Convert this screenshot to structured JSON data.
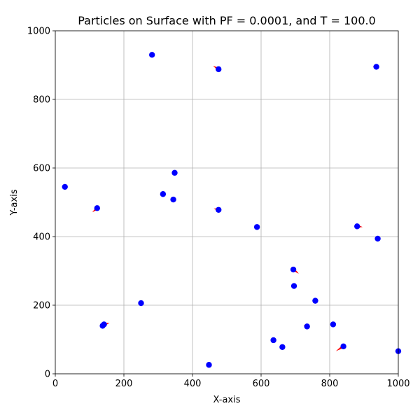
{
  "chart_data": {
    "type": "scatter",
    "title": "Particles on Surface with PF = 0.0001, and T = 100.0",
    "xlabel": "X-axis",
    "ylabel": "Y-axis",
    "xlim": [
      0,
      1000
    ],
    "ylim": [
      0,
      1000
    ],
    "x_ticks": [
      "0",
      "200",
      "400",
      "600",
      "800",
      "1000"
    ],
    "y_ticks": [
      "0",
      "200",
      "400",
      "600",
      "800",
      "1000"
    ],
    "grid": true,
    "colors": {
      "point": "#0000ff",
      "arrow": "#ff0000"
    },
    "points": [
      {
        "x": 28,
        "y": 545
      },
      {
        "x": 122,
        "y": 483,
        "dx": -14,
        "dy": -12
      },
      {
        "x": 138,
        "y": 140
      },
      {
        "x": 142,
        "y": 144,
        "dx": 16,
        "dy": 4
      },
      {
        "x": 250,
        "y": 206,
        "dx": -8,
        "dy": 4
      },
      {
        "x": 282,
        "y": 930
      },
      {
        "x": 314,
        "y": 524
      },
      {
        "x": 344,
        "y": 508
      },
      {
        "x": 348,
        "y": 586
      },
      {
        "x": 448,
        "y": 26
      },
      {
        "x": 476,
        "y": 888,
        "dx": -16,
        "dy": 10
      },
      {
        "x": 476,
        "y": 478,
        "dx": -14,
        "dy": 4
      },
      {
        "x": 588,
        "y": 428
      },
      {
        "x": 636,
        "y": 98,
        "dx": 8,
        "dy": -2
      },
      {
        "x": 662,
        "y": 78
      },
      {
        "x": 694,
        "y": 304,
        "dx": 16,
        "dy": -12
      },
      {
        "x": 696,
        "y": 256
      },
      {
        "x": 734,
        "y": 138,
        "dx": -10,
        "dy": 4
      },
      {
        "x": 758,
        "y": 213
      },
      {
        "x": 810,
        "y": 144
      },
      {
        "x": 840,
        "y": 80,
        "dx": -22,
        "dy": -14
      },
      {
        "x": 880,
        "y": 430,
        "dx": 16,
        "dy": -2
      },
      {
        "x": 936,
        "y": 895,
        "dx": -10,
        "dy": 2
      },
      {
        "x": 940,
        "y": 394
      },
      {
        "x": 1000,
        "y": 66
      }
    ]
  }
}
